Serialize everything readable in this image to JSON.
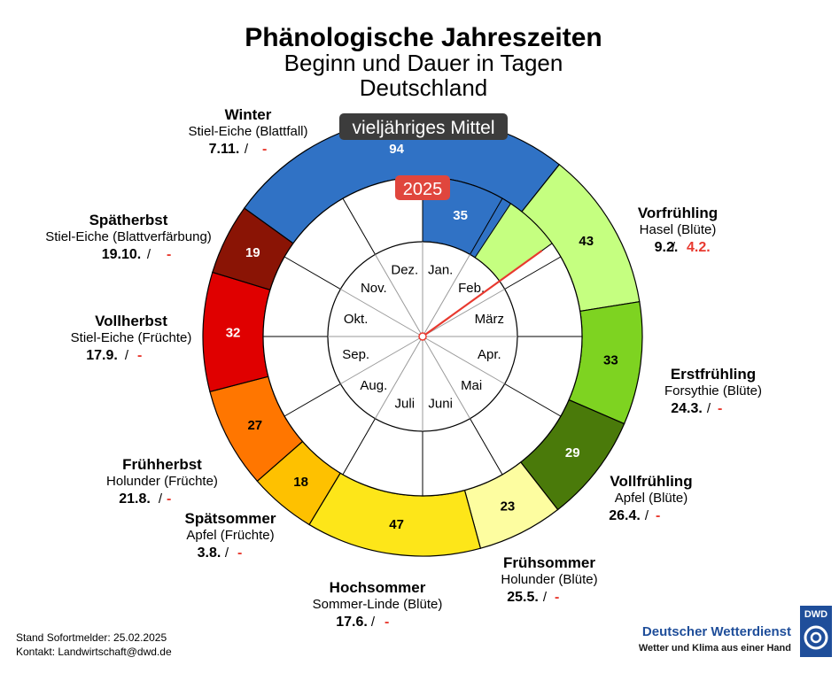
{
  "header": {
    "title": "Phänologische Jahreszeiten",
    "subtitle1": "Beginn und Dauer in Tagen",
    "subtitle2": "Deutschland"
  },
  "legend": {
    "outer_label": "vieljähriges Mittel",
    "inner_label": "2025"
  },
  "footer": {
    "stand": "Stand Sofortmelder: 25.02.2025",
    "kontakt": "Kontakt: Landwirtschaft@dwd.de"
  },
  "logo": {
    "abbr": "DWD",
    "name": "Deutscher Wetterdienst",
    "tagline": "Wetter und Klima aus einer Hand"
  },
  "chart_data": {
    "type": "pie",
    "ring_outer_label": "vieljähriges Mittel",
    "ring_inner_label": "2025",
    "months": [
      "Jan.",
      "Feb.",
      "März",
      "Apr.",
      "Mai",
      "Juni",
      "Juli",
      "Aug.",
      "Sep.",
      "Okt.",
      "Nov.",
      "Dez."
    ],
    "seasons": [
      {
        "name": "Winter",
        "indicator": "Stiel-Eiche (Blattfall)",
        "mean_start": "7.11.",
        "current_start": "-",
        "mean_days": 94,
        "current_days": 35,
        "color": "#3072c5",
        "text_color": "#ffffff"
      },
      {
        "name": "Vorfrühling",
        "indicator": "Hasel (Blüte)",
        "mean_start": "9.2.",
        "current_start": "4.2.",
        "mean_days": 43,
        "current_days": null,
        "color": "#c5ff80",
        "text_color": "#000000"
      },
      {
        "name": "Erstfrühling",
        "indicator": "Forsythie (Blüte)",
        "mean_start": "24.3.",
        "current_start": "-",
        "mean_days": 33,
        "current_days": null,
        "color": "#7ed321",
        "text_color": "#000000"
      },
      {
        "name": "Vollfrühling",
        "indicator": "Apfel (Blüte)",
        "mean_start": "26.4.",
        "current_start": "-",
        "mean_days": 29,
        "current_days": null,
        "color": "#4a7a0a",
        "text_color": "#ffffff"
      },
      {
        "name": "Frühsommer",
        "indicator": "Holunder (Blüte)",
        "mean_start": "25.5.",
        "current_start": "-",
        "mean_days": 23,
        "current_days": null,
        "color": "#fdfda0",
        "text_color": "#000000"
      },
      {
        "name": "Hochsommer",
        "indicator": "Sommer-Linde (Blüte)",
        "mean_start": "17.6.",
        "current_start": "-",
        "mean_days": 47,
        "current_days": null,
        "color": "#fde619",
        "text_color": "#000000"
      },
      {
        "name": "Spätsommer",
        "indicator": "Apfel (Früchte)",
        "mean_start": "3.8.",
        "current_start": "-",
        "mean_days": 18,
        "current_days": null,
        "color": "#fec100",
        "text_color": "#000000"
      },
      {
        "name": "Frühherbst",
        "indicator": "Holunder (Früchte)",
        "mean_start": "21.8.",
        "current_start": "-",
        "mean_days": 27,
        "current_days": null,
        "color": "#ff7600",
        "text_color": "#000000"
      },
      {
        "name": "Vollherbst",
        "indicator": "Stiel-Eiche (Früchte)",
        "mean_start": "17.9.",
        "current_start": "-",
        "mean_days": 32,
        "current_days": null,
        "color": "#e00000",
        "text_color": "#ffffff"
      },
      {
        "name": "Spätherbst",
        "indicator": "Stiel-Eiche (Blattverfärbung)",
        "mean_start": "19.10.",
        "current_start": "-",
        "mean_days": 19,
        "current_days": null,
        "color": "#8a1405",
        "text_color": "#ffffff"
      }
    ],
    "current_progress": {
      "start": "4.2.",
      "end": "25.2.",
      "color": "#c5ff80"
    },
    "report_marker": {
      "date": "25.02.2025",
      "color": "#e8392f"
    }
  }
}
